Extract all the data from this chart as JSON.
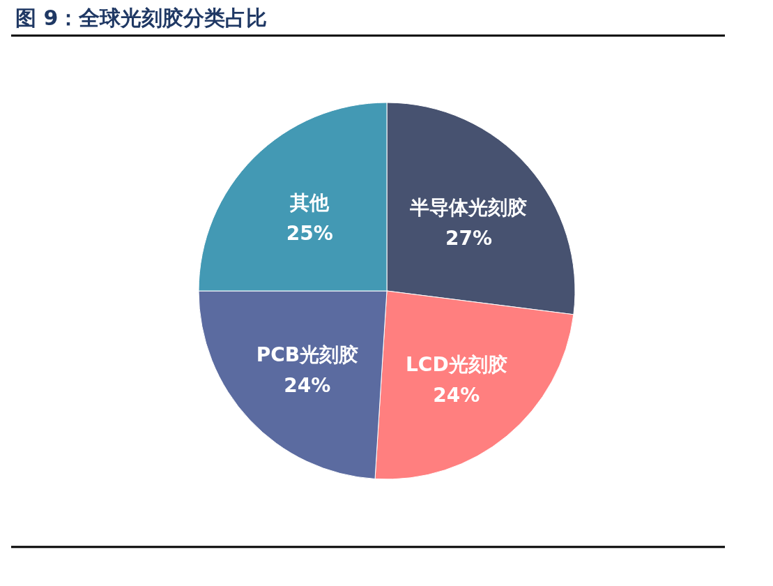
{
  "chart_data": {
    "type": "pie",
    "title": "图 9：全球光刻胶分类占比",
    "categories": [
      "半导体光刻胶",
      "LCD光刻胶",
      "PCB光刻胶",
      "其他"
    ],
    "values": [
      27,
      24,
      24,
      25
    ],
    "colors": [
      "#475270",
      "#ff7f7f",
      "#5b6ba0",
      "#4399b4"
    ],
    "value_labels": [
      "27%",
      "24%",
      "24%",
      "25%"
    ]
  }
}
